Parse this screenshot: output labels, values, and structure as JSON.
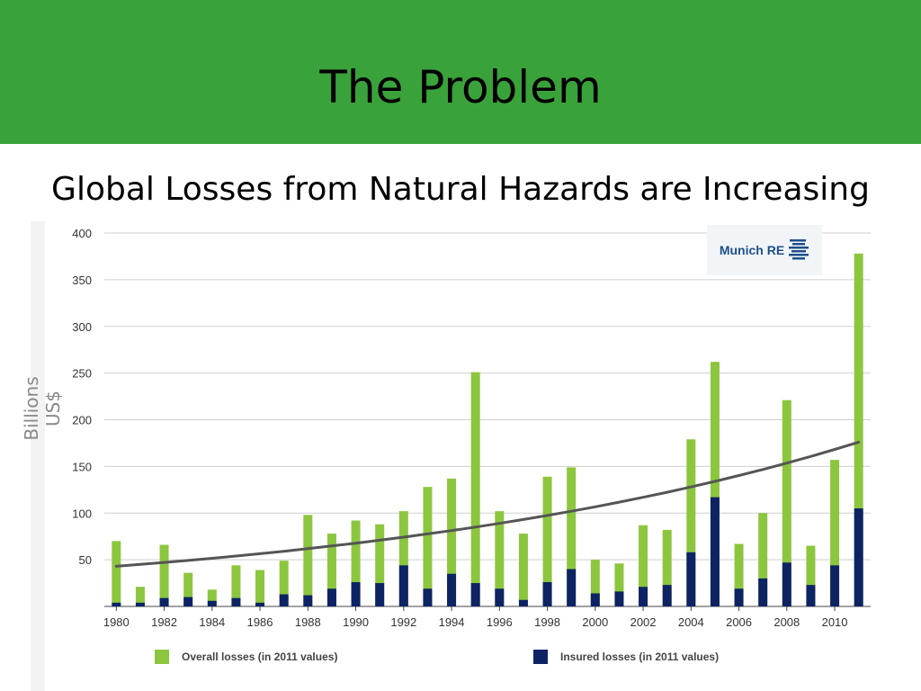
{
  "slide": {
    "title": "The Problem",
    "subtitle": "Global Losses from Natural Hazards are Increasing",
    "banner_color": "#3aa23a"
  },
  "logo": {
    "text": "Munich RE",
    "color": "#1d4f8a"
  },
  "chart_data": {
    "type": "bar",
    "ylabel": "Billions US$",
    "ylim": [
      0,
      400
    ],
    "yticks": [
      50,
      100,
      150,
      200,
      250,
      300,
      350,
      400
    ],
    "grid": true,
    "categories": [
      1980,
      1981,
      1982,
      1983,
      1984,
      1985,
      1986,
      1987,
      1988,
      1989,
      1990,
      1991,
      1992,
      1993,
      1994,
      1995,
      1996,
      1997,
      1998,
      1999,
      2000,
      2001,
      2002,
      2003,
      2004,
      2005,
      2006,
      2007,
      2008,
      2009,
      2010,
      2011
    ],
    "xtick_labels": [
      "1980",
      "1982",
      "1984",
      "1986",
      "1988",
      "1990",
      "1992",
      "1994",
      "1996",
      "1998",
      "2000",
      "2002",
      "2004",
      "2006",
      "2008",
      "2010"
    ],
    "series": [
      {
        "name": "Overall losses (in 2011 values)",
        "color": "#8cc63f",
        "values": [
          70,
          21,
          66,
          36,
          18,
          44,
          39,
          49,
          98,
          78,
          92,
          88,
          102,
          128,
          137,
          251,
          102,
          78,
          139,
          149,
          50,
          46,
          87,
          82,
          179,
          262,
          67,
          100,
          221,
          65,
          157,
          378
        ]
      },
      {
        "name": "Insured losses (in 2011 values)",
        "color": "#0d2364",
        "values": [
          4,
          4,
          9,
          10,
          6,
          9,
          4,
          13,
          12,
          19,
          26,
          25,
          44,
          19,
          35,
          25,
          19,
          7,
          26,
          40,
          14,
          16,
          21,
          23,
          58,
          117,
          19,
          30,
          47,
          23,
          44,
          105
        ]
      }
    ],
    "trend_line": {
      "color": "#555555",
      "start_value": 43,
      "end_value": 176
    }
  }
}
